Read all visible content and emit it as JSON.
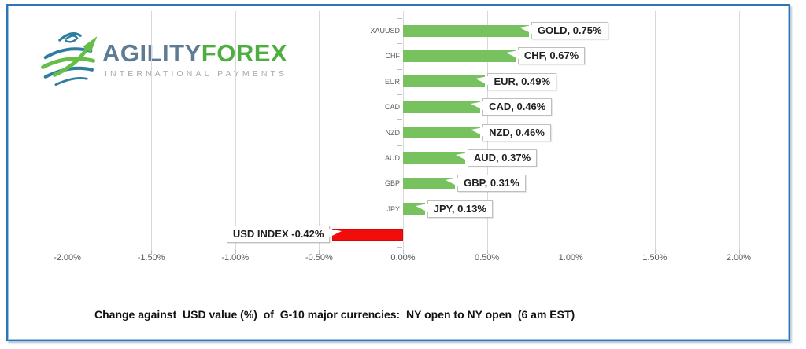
{
  "logo": {
    "brand_primary": "AGILITY",
    "brand_secondary": "FOREX",
    "tagline": "INTERNATIONAL PAYMENTS",
    "colors": {
      "brand_primary": "#5d7b94",
      "brand_secondary": "#4fae42",
      "globe_blue": "#2f7d9e",
      "globe_green": "#64be48"
    }
  },
  "chart_data": {
    "type": "bar",
    "orientation": "horizontal",
    "categories": [
      "XAUUSD",
      "CHF",
      "EUR",
      "CAD",
      "NZD",
      "AUD",
      "GBP",
      "JPY",
      ""
    ],
    "values": [
      0.75,
      0.67,
      0.49,
      0.46,
      0.46,
      0.37,
      0.31,
      0.13,
      -0.42
    ],
    "data_labels": [
      "GOLD, 0.75%",
      "CHF, 0.67%",
      "EUR, 0.49%",
      "CAD, 0.46%",
      "NZD, 0.46%",
      "AUD, 0.37%",
      "GBP, 0.31%",
      "JPY, 0.13%",
      "USD INDEX -0.42%"
    ],
    "x_ticks": [
      "-2.00%",
      "-1.50%",
      "-1.00%",
      "-0.50%",
      "0.00%",
      "0.50%",
      "1.00%",
      "1.50%",
      "2.00%"
    ],
    "xlim": [
      -2.0,
      2.0
    ],
    "grid": true,
    "legend": "none",
    "bar_color_positive": "#77c25f",
    "bar_color_negative": "#f20d0d",
    "gridline_color": "#d9d9d9",
    "frame_color": "#2e75b6",
    "title": "Change against  USD value (%)  of  G-10 major currencies:  NY open to NY open  (6 am EST)"
  }
}
